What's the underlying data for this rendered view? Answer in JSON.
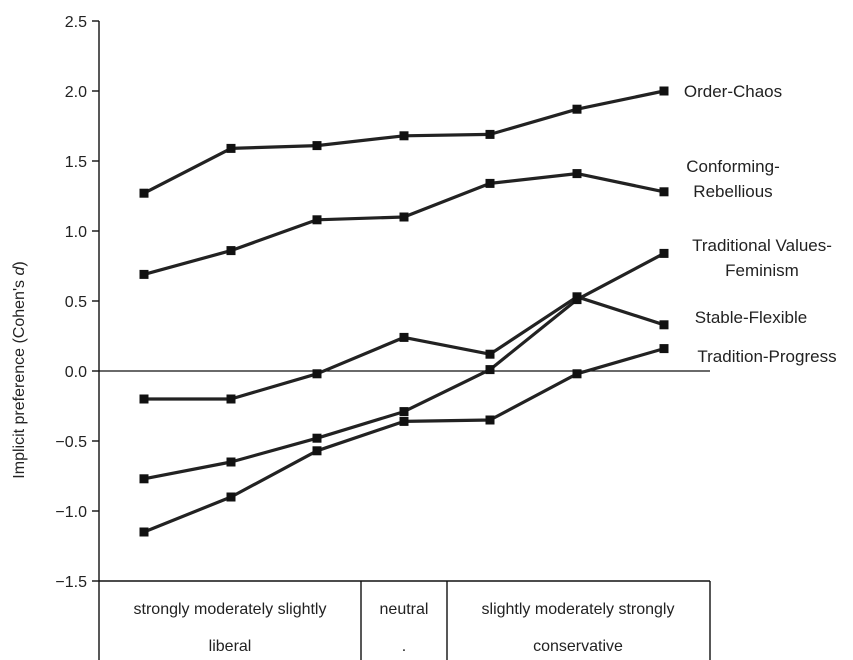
{
  "chart_data": {
    "type": "line",
    "title": "",
    "ylabel": "Implicit preference (Cohen's d)",
    "ylabel_main": "Implicit preference (Cohen's ",
    "ylabel_italic": "d",
    "ylabel_close": ")",
    "ylim": [
      -1.5,
      2.5
    ],
    "yticks": [
      "2.5",
      "2.0",
      "1.5",
      "1.0",
      "0.5",
      "0.0",
      "−0.5",
      "−1.0",
      "−1.5"
    ],
    "ytick_values": [
      2.5,
      2.0,
      1.5,
      1.0,
      0.5,
      0.0,
      -0.5,
      -1.0,
      -1.5
    ],
    "grid": false,
    "categories": [
      "strongly liberal",
      "moderately liberal",
      "slightly liberal",
      "neutral",
      "slightly conservative",
      "moderately conservative",
      "strongly conservative"
    ],
    "x_axis_row1": [
      "strongly moderately slightly",
      "neutral",
      "slightly moderately strongly"
    ],
    "x_axis_row2": [
      "liberal",
      ".",
      "conservative"
    ],
    "series": [
      {
        "name": "Order-Chaos",
        "label_lines": [
          "Order-Chaos"
        ],
        "values": [
          1.27,
          1.59,
          1.61,
          1.68,
          1.69,
          1.87,
          2.0
        ]
      },
      {
        "name": "Conforming-Rebellious",
        "label_lines": [
          "Conforming-",
          "Rebellious"
        ],
        "values": [
          0.69,
          0.86,
          1.08,
          1.1,
          1.34,
          1.41,
          1.28
        ]
      },
      {
        "name": "Traditional Values-Feminism",
        "label_lines": [
          "Traditional Values-",
          "Feminism"
        ],
        "values": [
          -0.77,
          -0.65,
          -0.48,
          -0.29,
          0.01,
          0.51,
          0.84
        ]
      },
      {
        "name": "Stable-Flexible",
        "label_lines": [
          "Stable-Flexible"
        ],
        "values": [
          -0.2,
          -0.2,
          -0.02,
          0.24,
          0.12,
          0.53,
          0.33
        ]
      },
      {
        "name": "Tradition-Progress",
        "label_lines": [
          "Tradition-Progress"
        ],
        "values": [
          -1.15,
          -0.9,
          -0.57,
          -0.36,
          -0.35,
          -0.02,
          0.16
        ]
      }
    ],
    "colors": {
      "line": "#222222",
      "marker": "#111111",
      "axis": "#111111"
    }
  }
}
